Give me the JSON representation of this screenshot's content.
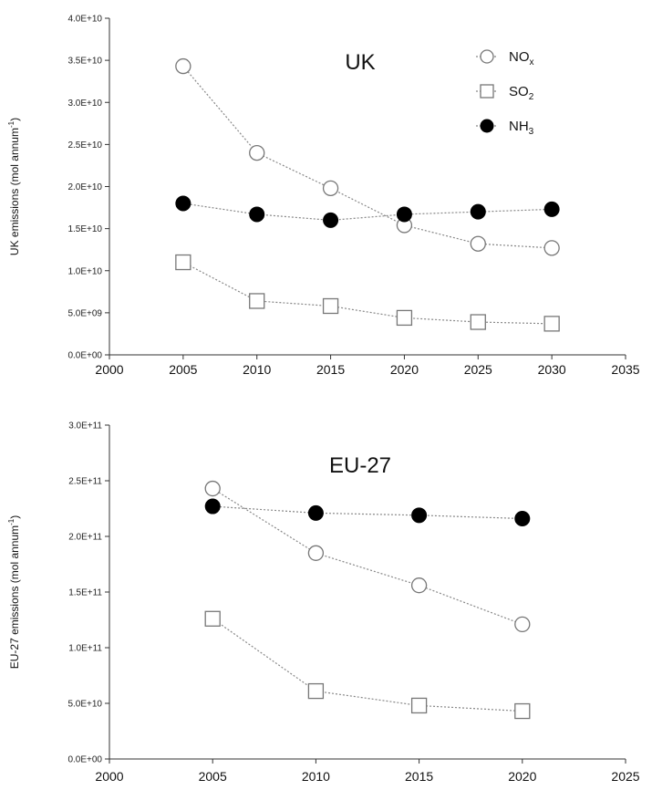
{
  "colors": {
    "axis": "#333333",
    "line": "#888888",
    "open_marker": "#777777",
    "filled_marker": "#000000"
  },
  "chart_data": [
    {
      "type": "scatter",
      "title": "UK",
      "ylabel": "UK emissions (mol annum-1)",
      "ylabel_base": "UK emissions (mol annum",
      "ylabel_sup": "-1",
      "ylabel_close": ")",
      "xlim": [
        2000,
        2035
      ],
      "ylim": [
        0,
        40000000000
      ],
      "xticks": [
        2000,
        2005,
        2010,
        2015,
        2020,
        2025,
        2030,
        2035
      ],
      "yticks": [
        0,
        5000000000,
        10000000000,
        15000000000,
        20000000000,
        25000000000,
        30000000000,
        35000000000,
        40000000000
      ],
      "yticklabels": [
        "0.0E+00",
        "5.0E+09",
        "1.0E+10",
        "1.5E+10",
        "2.0E+10",
        "2.5E+10",
        "3.0E+10",
        "3.5E+10",
        "4.0E+10"
      ],
      "legend_position": "top-right",
      "series": [
        {
          "name": "NOx",
          "label_main": "NO",
          "label_sub": "x",
          "marker": "circle-open",
          "x": [
            2005,
            2010,
            2015,
            2020,
            2025,
            2030
          ],
          "y": [
            34300000000,
            24000000000,
            19800000000,
            15400000000,
            13200000000,
            12700000000
          ]
        },
        {
          "name": "SO2",
          "label_main": "SO",
          "label_sub": "2",
          "marker": "square-open",
          "x": [
            2005,
            2010,
            2015,
            2020,
            2025,
            2030
          ],
          "y": [
            11000000000,
            6400000000,
            5800000000,
            4400000000,
            3900000000,
            3700000000
          ]
        },
        {
          "name": "NH3",
          "label_main": "NH",
          "label_sub": "3",
          "marker": "circle-filled",
          "x": [
            2005,
            2010,
            2015,
            2020,
            2025,
            2030
          ],
          "y": [
            18000000000,
            16700000000,
            16000000000,
            16700000000,
            17000000000,
            17300000000
          ]
        }
      ]
    },
    {
      "type": "scatter",
      "title": "EU-27",
      "ylabel": "EU-27 emissions (mol annum-1)",
      "ylabel_base": "EU-27 emissions (mol annum",
      "ylabel_sup": "-1",
      "ylabel_close": ")",
      "xlim": [
        2000,
        2025
      ],
      "ylim": [
        0,
        300000000000
      ],
      "xticks": [
        2000,
        2005,
        2010,
        2015,
        2020,
        2025
      ],
      "yticks": [
        0,
        50000000000,
        100000000000,
        150000000000,
        200000000000,
        250000000000,
        300000000000
      ],
      "yticklabels": [
        "0.0E+00",
        "5.0E+10",
        "1.0E+11",
        "1.5E+11",
        "2.0E+11",
        "2.5E+11",
        "3.0E+11"
      ],
      "series": [
        {
          "name": "NOx",
          "marker": "circle-open",
          "x": [
            2005,
            2010,
            2015,
            2020
          ],
          "y": [
            243000000000,
            185000000000,
            156000000000,
            121000000000
          ]
        },
        {
          "name": "SO2",
          "marker": "square-open",
          "x": [
            2005,
            2010,
            2015,
            2020
          ],
          "y": [
            126000000000,
            61000000000,
            48000000000,
            43000000000
          ]
        },
        {
          "name": "NH3",
          "marker": "circle-filled",
          "x": [
            2005,
            2010,
            2015,
            2020
          ],
          "y": [
            227000000000,
            221000000000,
            219000000000,
            216000000000
          ]
        }
      ]
    }
  ]
}
